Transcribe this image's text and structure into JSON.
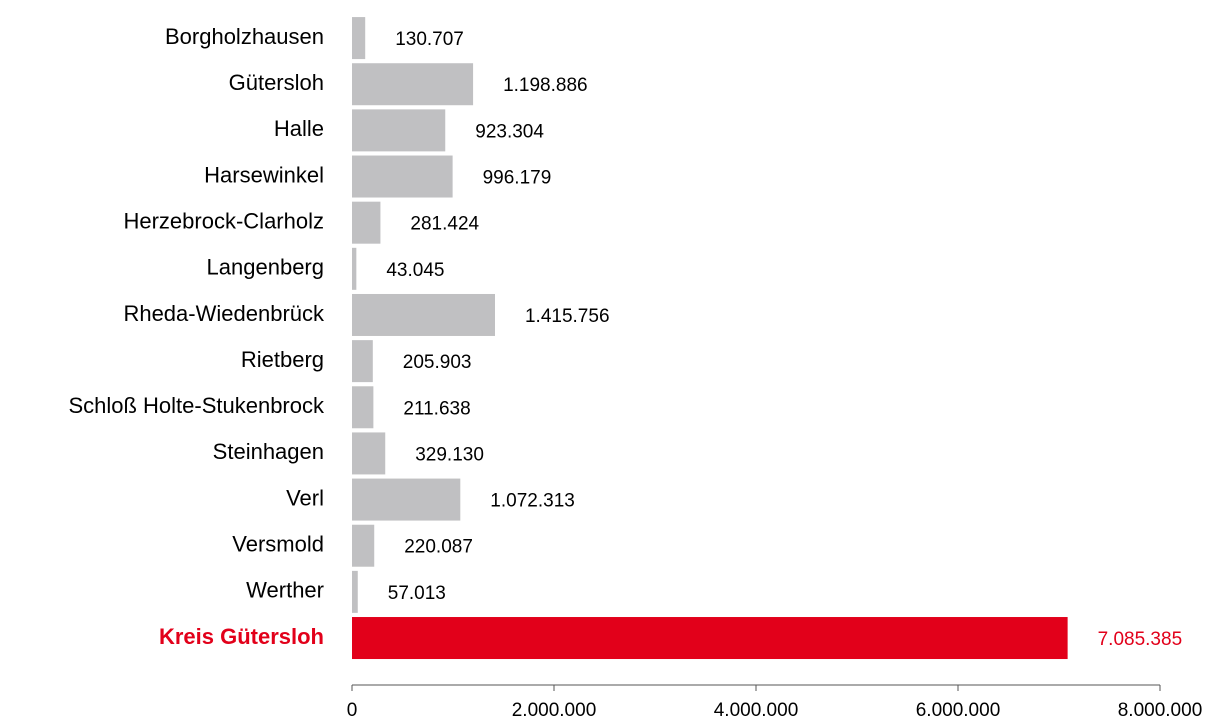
{
  "chart_data": {
    "type": "barh",
    "categories": [
      "Borgholzhausen",
      "Gütersloh",
      "Halle",
      "Harsewinkel",
      "Herzebrock-Clarholz",
      "Langenberg",
      "Rheda-Wiedenbrück",
      "Rietberg",
      "Schloß Holte-Stukenbrock",
      "Steinhagen",
      "Verl",
      "Versmold",
      "Werther",
      "Kreis Gütersloh"
    ],
    "values": [
      130707,
      1198886,
      923304,
      996179,
      281424,
      43045,
      1415756,
      205903,
      211638,
      329130,
      1072313,
      220087,
      57013,
      7085385
    ],
    "value_labels": [
      "130.707",
      "1.198.886",
      "923.304",
      "996.179",
      "281.424",
      "43.045",
      "1.415.756",
      "205.903",
      "211.638",
      "329.130",
      "1.072.313",
      "220.087",
      "57.013",
      "7.085.385"
    ],
    "colors": [
      "#c0c0c2",
      "#c0c0c2",
      "#c0c0c2",
      "#c0c0c2",
      "#c0c0c2",
      "#c0c0c2",
      "#c0c0c2",
      "#c0c0c2",
      "#c0c0c2",
      "#c0c0c2",
      "#c0c0c2",
      "#c0c0c2",
      "#c0c0c2",
      "#e2001a"
    ],
    "label_colors": [
      "#000000",
      "#000000",
      "#000000",
      "#000000",
      "#000000",
      "#000000",
      "#000000",
      "#000000",
      "#000000",
      "#000000",
      "#000000",
      "#000000",
      "#000000",
      "#e2001a"
    ],
    "xlim": [
      0,
      8000000
    ],
    "xticks": [
      0,
      {
        "value": 2000000,
        "label": "2.000.000"
      },
      {
        "value": 4000000,
        "label": "4.000.000"
      },
      {
        "value": 6000000,
        "label": "6.000.000"
      },
      {
        "value": 8000000,
        "label": "8.000.000"
      }
    ]
  }
}
